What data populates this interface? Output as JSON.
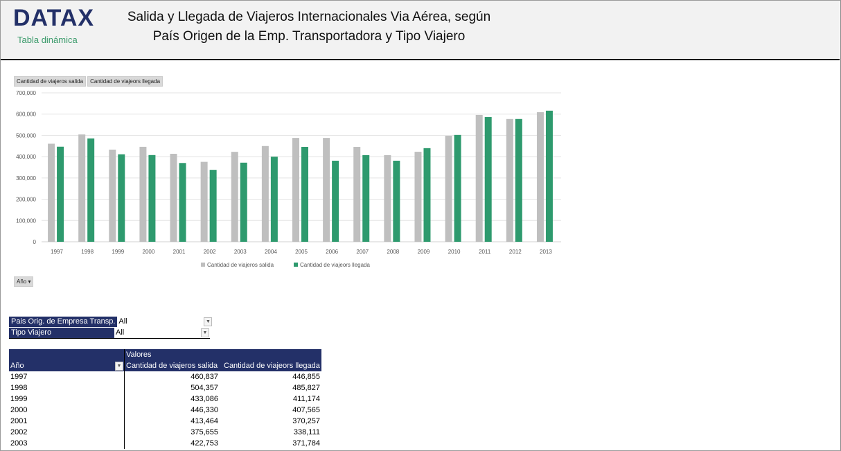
{
  "header": {
    "logo": "DATAX",
    "subtitle": "Tabla dinámica",
    "title_line1": "Salida y Llegada de Viajeros Internacionales Via Aérea, según",
    "title_line2": "País Origen de la Emp. Transportadora y Tipo Viajero"
  },
  "field_buttons": [
    "Cantidad de viajeros salida",
    "Cantidad de viajeors llegada"
  ],
  "axis_button": "Año",
  "colors": {
    "salida": "#bfbfbf",
    "llegada": "#2e9a6e",
    "navy": "#233068"
  },
  "chart_data": {
    "type": "bar",
    "categories": [
      "1997",
      "1998",
      "1999",
      "2000",
      "2001",
      "2002",
      "2003",
      "2004",
      "2005",
      "2006",
      "2007",
      "2008",
      "2009",
      "2010",
      "2011",
      "2012",
      "2013"
    ],
    "series": [
      {
        "name": "Cantidad de viajeros salida",
        "values": [
          460837,
          504357,
          433086,
          446330,
          413464,
          375655,
          422753,
          450000,
          488000,
          488000,
          446000,
          407000,
          423000,
          498000,
          596000,
          577000,
          609000
        ]
      },
      {
        "name": "Cantidad de viajeors llegada",
        "values": [
          446855,
          485827,
          411174,
          407565,
          370257,
          338111,
          371784,
          400000,
          446000,
          381000,
          407000,
          381000,
          440000,
          502000,
          586000,
          577000,
          616000
        ]
      }
    ],
    "yticks": [
      "0",
      "100,000",
      "200,000",
      "300,000",
      "400,000",
      "500,000",
      "600,000",
      "700,000"
    ],
    "ylim": [
      0,
      700000
    ],
    "grid": true,
    "legend": "bottom"
  },
  "filters": [
    {
      "label": "Pais Orig. de Empresa Transp.",
      "value": "All"
    },
    {
      "label": "Tipo Viajero",
      "value": "All"
    }
  ],
  "pivot": {
    "values_label": "Valores",
    "row_header": "Año",
    "col1": "Cantidad de viajeros salida",
    "col2": "Cantidad de viajeors llegada",
    "rows": [
      [
        "1997",
        "460,837",
        "446,855"
      ],
      [
        "1998",
        "504,357",
        "485,827"
      ],
      [
        "1999",
        "433,086",
        "411,174"
      ],
      [
        "2000",
        "446,330",
        "407,565"
      ],
      [
        "2001",
        "413,464",
        "370,257"
      ],
      [
        "2002",
        "375,655",
        "338,111"
      ],
      [
        "2003",
        "422,753",
        "371,784"
      ]
    ]
  }
}
